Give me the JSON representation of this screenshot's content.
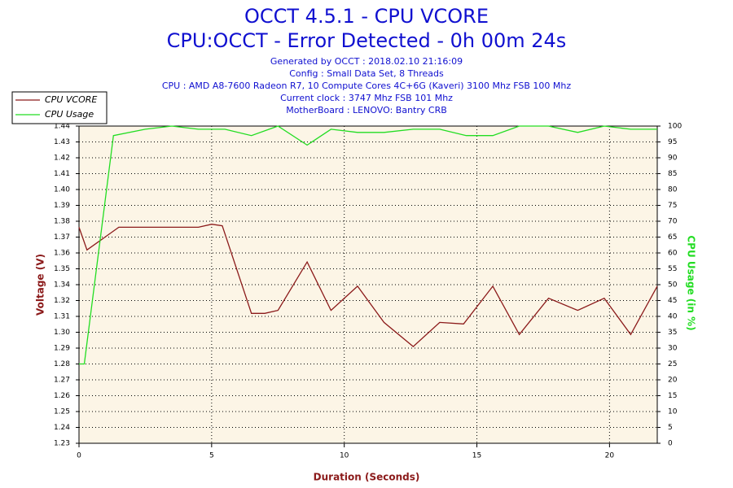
{
  "chart_data": {
    "type": "line",
    "title": "OCCT 4.5.1 - CPU VCORE",
    "subtitle": "CPU:OCCT - Error Detected - 0h 00m 24s",
    "info": [
      "Generated by OCCT : 2018.02.10 21:16:09",
      "Config : Small Data Set, 8 Threads",
      "CPU : AMD A8-7600 Radeon R7, 10 Compute Cores 4C+6G (Kaveri) 3100 Mhz FSB 100 Mhz",
      "Current clock : 3747 Mhz FSB 101 Mhz",
      "MotherBoard : LENOVO: Bantry CRB"
    ],
    "x_label": "Duration (Seconds)",
    "y_label": "Voltage (V)",
    "y2_label": "CPU Usage (in %)",
    "xlim": [
      0,
      21.8
    ],
    "xticks": [
      0,
      5,
      10,
      15,
      20
    ],
    "ylim": [
      1.23,
      1.44
    ],
    "yticks": [
      1.23,
      1.2405,
      1.251,
      1.2615,
      1.272,
      1.2825,
      1.293,
      1.3035,
      1.314,
      1.3245,
      1.335,
      1.3455,
      1.356,
      1.3665,
      1.377,
      1.3875,
      1.398,
      1.4085,
      1.419,
      1.4295,
      1.44
    ],
    "ytick_labels": [
      "1.23",
      "1.24",
      "1.25",
      "1.26",
      "1.27",
      "1.28",
      "1.29",
      "1.30",
      "1.31",
      "1.32",
      "1.34",
      "1.35",
      "1.36",
      "1.37",
      "1.38",
      "1.39",
      "1.40",
      "1.41",
      "1.42",
      "1.43",
      "1.44"
    ],
    "y2lim": [
      0,
      100
    ],
    "y2ticks": [
      0,
      5,
      10,
      15,
      20,
      25,
      30,
      35,
      40,
      45,
      50,
      55,
      60,
      65,
      70,
      75,
      80,
      85,
      90,
      95,
      100
    ],
    "grid": true,
    "legend": "top-left",
    "series": [
      {
        "name": "CPU VCORE",
        "color": "#8b1a1a",
        "x": [
          0,
          0.3,
          1.5,
          4.5,
          5,
          5.4,
          6.5,
          7,
          7.5,
          8.6,
          9.5,
          10.5,
          11.5,
          12.6,
          13.6,
          14.5,
          15.6,
          16.6,
          17.7,
          18.8,
          19.8,
          20.8,
          21.8
        ],
        "values": [
          1.373,
          1.358,
          1.373,
          1.373,
          1.375,
          1.374,
          1.316,
          1.316,
          1.318,
          1.35,
          1.318,
          1.334,
          1.31,
          1.294,
          1.31,
          1.309,
          1.334,
          1.302,
          1.326,
          1.318,
          1.326,
          1.302,
          1.334
        ]
      },
      {
        "name": "CPU Usage",
        "color": "#22dd22",
        "axis": "y2",
        "x": [
          0,
          0.2,
          1.3,
          2.5,
          3.5,
          4.5,
          5.5,
          6.5,
          7.5,
          8.6,
          9.5,
          10.5,
          11.5,
          12.6,
          13.6,
          14.6,
          15.6,
          16.6,
          17.7,
          18.8,
          19.8,
          20.8,
          21.8
        ],
        "values": [
          25,
          25,
          97,
          99,
          100,
          99,
          99,
          97,
          100,
          94,
          99,
          98,
          98,
          99,
          99,
          97,
          97,
          100,
          100,
          98,
          100,
          99,
          99
        ]
      }
    ]
  }
}
